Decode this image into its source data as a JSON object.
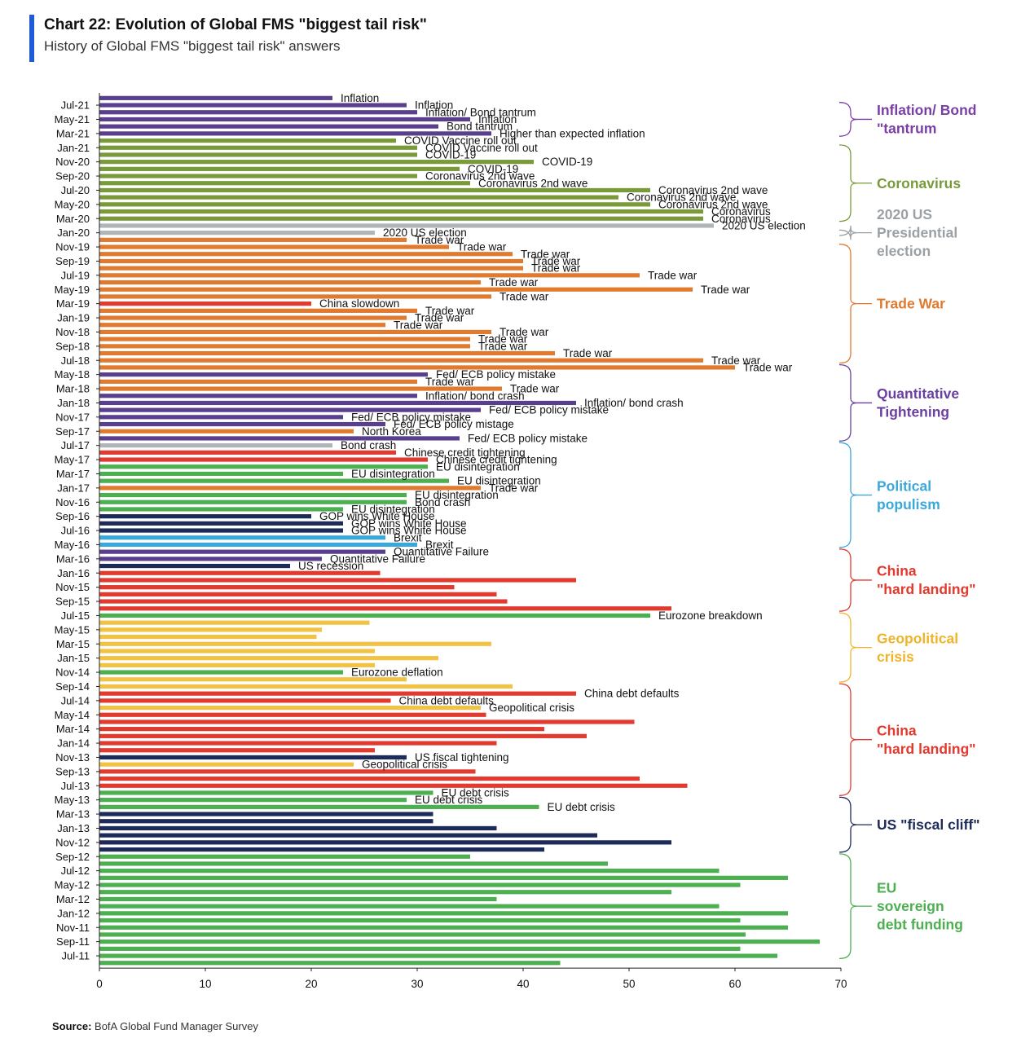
{
  "title": "Chart 22: Evolution of Global FMS \"biggest tail risk\"",
  "subtitle": "History of Global FMS \"biggest tail risk\" answers",
  "source_label": "Source:",
  "source_text": "BofA Global Fund Manager Survey",
  "colors": {
    "inflation": "#5b3f8f",
    "covid": "#7a9a3a",
    "election": "#b0b5b8",
    "tradewar": "#e07a2e",
    "qt": "#5b3f8f",
    "populism": "#3aa8d8",
    "china": "#e23a2e",
    "geo": "#f2c244",
    "fiscal": "#1c2b59",
    "eu": "#4caf50"
  },
  "groups": [
    {
      "lines": [
        "Inflation/ Bond",
        "\"tantrum"
      ],
      "color": "#7a3fa6",
      "from": "Jul-21",
      "to": "Mar-21"
    },
    {
      "lines": [
        "Coronavirus"
      ],
      "color": "#7a9a3a",
      "from": "Jan-21",
      "to": "Mar-20"
    },
    {
      "lines": [
        "2020 US",
        "Presidential",
        "election"
      ],
      "color": "#9aa0a4",
      "from": "Jan-20",
      "to": "Jan-20"
    },
    {
      "lines": [
        "Trade War"
      ],
      "color": "#e07a2e",
      "from": "Nov-19",
      "to": "Jul-18"
    },
    {
      "lines": [
        "Quantitative",
        "Tightening"
      ],
      "color": "#6b3fa0",
      "from": "Jun-18",
      "to": "Aug-17"
    },
    {
      "lines": [
        "Political",
        "populism"
      ],
      "color": "#3aa8d8",
      "from": "Jul-17",
      "to": "May-16"
    },
    {
      "lines": [
        "China",
        "\"hard landing\""
      ],
      "color": "#e23a2e",
      "from": "Apr-16",
      "to": "Aug-15"
    },
    {
      "lines": [
        "Geopolitical",
        "crisis"
      ],
      "color": "#f0b429",
      "from": "Jul-15",
      "to": "Oct-14"
    },
    {
      "lines": [
        "China",
        "\"hard landing\""
      ],
      "color": "#e23a2e",
      "from": "Sep-14",
      "to": "Jun-13"
    },
    {
      "lines": [
        "US \"fiscal cliff\""
      ],
      "color": "#1c2b59",
      "from": "May-13",
      "to": "Oct-12"
    },
    {
      "lines": [
        "EU",
        "sovereign",
        "debt funding"
      ],
      "color": "#4caf50",
      "from": "Sep-12",
      "to": "Jul-11"
    }
  ],
  "chart_data": {
    "type": "bar",
    "orientation": "horizontal",
    "xlim": [
      0,
      70
    ],
    "xticks": [
      0,
      10,
      20,
      30,
      40,
      50,
      60,
      70
    ],
    "grid": false,
    "ytick_labels": [
      "Jul-21",
      "May-21",
      "Mar-21",
      "Jan-21",
      "Nov-20",
      "Sep-20",
      "Jul-20",
      "May-20",
      "Mar-20",
      "Jan-20",
      "Nov-19",
      "Sep-19",
      "Jul-19",
      "May-19",
      "Mar-19",
      "Jan-19",
      "Nov-18",
      "Sep-18",
      "Jul-18",
      "May-18",
      "Mar-18",
      "Jan-18",
      "Nov-17",
      "Sep-17",
      "Jul-17",
      "May-17",
      "Mar-17",
      "Jan-17",
      "Nov-16",
      "Sep-16",
      "Jul-16",
      "May-16",
      "Mar-16",
      "Jan-16",
      "Nov-15",
      "Sep-15",
      "Jul-15",
      "May-15",
      "Mar-15",
      "Jan-15",
      "Nov-14",
      "Sep-14",
      "Jul-14",
      "May-14",
      "Mar-14",
      "Jan-14",
      "Nov-13",
      "Sep-13",
      "Jul-13",
      "May-13",
      "Mar-13",
      "Jan-13",
      "Nov-12",
      "Sep-12",
      "Jul-12",
      "May-12",
      "Mar-12",
      "Jan-12",
      "Nov-11",
      "Sep-11",
      "Jul-11"
    ],
    "bars": [
      {
        "m": "Aug-21",
        "v": 22,
        "c": "inflation",
        "l": "Inflation"
      },
      {
        "m": "Jul-21",
        "v": 29,
        "c": "inflation",
        "l": "Inflation"
      },
      {
        "m": "Jun-21",
        "v": 30,
        "c": "inflation",
        "l": "Inflation/ Bond tantrum"
      },
      {
        "m": "May-21",
        "v": 35,
        "c": "inflation",
        "l": "Inflation"
      },
      {
        "m": "Apr-21",
        "v": 32,
        "c": "inflation",
        "l": "Bond tantrum"
      },
      {
        "m": "Mar-21",
        "v": 37,
        "c": "inflation",
        "l": "Higher than expected inflation"
      },
      {
        "m": "Feb-21",
        "v": 28,
        "c": "covid",
        "l": "COVID Vaccine roll out"
      },
      {
        "m": "Jan-21",
        "v": 30,
        "c": "covid",
        "l": "COVID Vaccine roll out"
      },
      {
        "m": "Dec-20",
        "v": 30,
        "c": "covid",
        "l": "COVID-19"
      },
      {
        "m": "Nov-20",
        "v": 41,
        "c": "covid",
        "l": "COVID-19"
      },
      {
        "m": "Oct-20",
        "v": 34,
        "c": "covid",
        "l": "COVID-19"
      },
      {
        "m": "Sep-20",
        "v": 30,
        "c": "covid",
        "l": "Coronavirus 2nd wave"
      },
      {
        "m": "Aug-20",
        "v": 35,
        "c": "covid",
        "l": "Coronavirus 2nd wave"
      },
      {
        "m": "Jul-20",
        "v": 52,
        "c": "covid",
        "l": "Coronavirus 2nd wave"
      },
      {
        "m": "Jun-20",
        "v": 49,
        "c": "covid",
        "l": "Coronavirus 2nd wave"
      },
      {
        "m": "May-20",
        "v": 52,
        "c": "covid",
        "l": "Coronavirus 2nd wave"
      },
      {
        "m": "Apr-20",
        "v": 57,
        "c": "covid",
        "l": "Coronavirus"
      },
      {
        "m": "Mar-20",
        "v": 57,
        "c": "covid",
        "l": "Coronavirus"
      },
      {
        "m": "Feb-20",
        "v": 58,
        "c": "election",
        "l": "2020 US election"
      },
      {
        "m": "Jan-20",
        "v": 26,
        "c": "election",
        "l": "2020 US election"
      },
      {
        "m": "Dec-19",
        "v": 29,
        "c": "tradewar",
        "l": "Trade war"
      },
      {
        "m": "Nov-19",
        "v": 33,
        "c": "tradewar",
        "l": "Trade war"
      },
      {
        "m": "Oct-19",
        "v": 39,
        "c": "tradewar",
        "l": "Trade war"
      },
      {
        "m": "Sep-19",
        "v": 40,
        "c": "tradewar",
        "l": "Trade war"
      },
      {
        "m": "Aug-19",
        "v": 40,
        "c": "tradewar",
        "l": "Trade war"
      },
      {
        "m": "Jul-19",
        "v": 51,
        "c": "tradewar",
        "l": "Trade war"
      },
      {
        "m": "Jun-19",
        "v": 36,
        "c": "tradewar",
        "l": "Trade war"
      },
      {
        "m": "May-19",
        "v": 56,
        "c": "tradewar",
        "l": "Trade war"
      },
      {
        "m": "Apr-19",
        "v": 37,
        "c": "tradewar",
        "l": "Trade war"
      },
      {
        "m": "Mar-19",
        "v": 20,
        "c": "china",
        "l": "China slowdown"
      },
      {
        "m": "Feb-19",
        "v": 30,
        "c": "tradewar",
        "l": "Trade war"
      },
      {
        "m": "Jan-19",
        "v": 29,
        "c": "tradewar",
        "l": "Trade war"
      },
      {
        "m": "Dec-18",
        "v": 27,
        "c": "tradewar",
        "l": "Trade war"
      },
      {
        "m": "Nov-18",
        "v": 37,
        "c": "tradewar",
        "l": "Trade war"
      },
      {
        "m": "Oct-18",
        "v": 35,
        "c": "tradewar",
        "l": "Trade war"
      },
      {
        "m": "Sep-18",
        "v": 35,
        "c": "tradewar",
        "l": "Trade war"
      },
      {
        "m": "Aug-18",
        "v": 43,
        "c": "tradewar",
        "l": "Trade war"
      },
      {
        "m": "Jul-18",
        "v": 57,
        "c": "tradewar",
        "l": "Trade war"
      },
      {
        "m": "Jun-18",
        "v": 60,
        "c": "tradewar",
        "l": "Trade war"
      },
      {
        "m": "May-18",
        "v": 31,
        "c": "qt",
        "l": "Fed/ ECB policy mistake"
      },
      {
        "m": "Apr-18",
        "v": 30,
        "c": "tradewar",
        "l": "Trade war"
      },
      {
        "m": "Mar-18",
        "v": 38,
        "c": "tradewar",
        "l": "Trade war"
      },
      {
        "m": "Feb-18",
        "v": 30,
        "c": "qt",
        "l": "Inflation/ bond crash"
      },
      {
        "m": "Jan-18",
        "v": 45,
        "c": "qt",
        "l": "Inflation/ bond crash"
      },
      {
        "m": "Dec-17",
        "v": 36,
        "c": "qt",
        "l": "Fed/ ECB policy mistake"
      },
      {
        "m": "Nov-17",
        "v": 23,
        "c": "qt",
        "l": "Fed/ ECB policy mistake"
      },
      {
        "m": "Oct-17",
        "v": 27,
        "c": "qt",
        "l": "Fed/ ECB policy mistage"
      },
      {
        "m": "Sep-17",
        "v": 24,
        "c": "tradewar",
        "l": "North Korea"
      },
      {
        "m": "Aug-17",
        "v": 34,
        "c": "qt",
        "l": "Fed/ ECB policy mistake"
      },
      {
        "m": "Jul-17",
        "v": 22,
        "c": "election",
        "l": "Bond crash"
      },
      {
        "m": "Jun-17",
        "v": 28,
        "c": "china",
        "l": "Chinese credit tightening"
      },
      {
        "m": "May-17",
        "v": 31,
        "c": "china",
        "l": "Chinese credit tightening"
      },
      {
        "m": "Apr-17",
        "v": 31,
        "c": "eu",
        "l": "EU disintegration"
      },
      {
        "m": "Mar-17",
        "v": 23,
        "c": "eu",
        "l": "EU disintegration"
      },
      {
        "m": "Feb-17",
        "v": 33,
        "c": "eu",
        "l": "EU disintegration"
      },
      {
        "m": "Jan-17",
        "v": 36,
        "c": "tradewar",
        "l": "Trade war"
      },
      {
        "m": "Dec-16",
        "v": 29,
        "c": "eu",
        "l": "EU disintegration"
      },
      {
        "m": "Nov-16",
        "v": 29,
        "c": "eu",
        "l": "Bond crash"
      },
      {
        "m": "Oct-16",
        "v": 23,
        "c": "eu",
        "l": "EU disintegration"
      },
      {
        "m": "Sep-16",
        "v": 20,
        "c": "fiscal",
        "l": "GOP wins White House"
      },
      {
        "m": "Aug-16",
        "v": 23,
        "c": "fiscal",
        "l": "GOP wins White House"
      },
      {
        "m": "Jul-16",
        "v": 23,
        "c": "fiscal",
        "l": "GOP wins White House"
      },
      {
        "m": "Jun-16",
        "v": 27,
        "c": "populism",
        "l": "Brexit"
      },
      {
        "m": "May-16",
        "v": 30,
        "c": "populism",
        "l": "Brexit"
      },
      {
        "m": "Apr-16",
        "v": 27,
        "c": "qt",
        "l": "Quantitative Failure"
      },
      {
        "m": "Mar-16",
        "v": 21,
        "c": "qt",
        "l": "Quantitative Failure"
      },
      {
        "m": "Feb-16",
        "v": 18,
        "c": "fiscal",
        "l": "US recession"
      },
      {
        "m": "Jan-16",
        "v": 26.5,
        "c": "china",
        "l": ""
      },
      {
        "m": "Dec-15",
        "v": 45,
        "c": "china",
        "l": ""
      },
      {
        "m": "Nov-15",
        "v": 33.5,
        "c": "china",
        "l": ""
      },
      {
        "m": "Oct-15",
        "v": 37.5,
        "c": "china",
        "l": ""
      },
      {
        "m": "Sep-15",
        "v": 38.5,
        "c": "china",
        "l": ""
      },
      {
        "m": "Aug-15",
        "v": 54,
        "c": "china",
        "l": ""
      },
      {
        "m": "Jul-15",
        "v": 52,
        "c": "eu",
        "l": "Eurozone breakdown"
      },
      {
        "m": "Jun-15",
        "v": 25.5,
        "c": "geo",
        "l": ""
      },
      {
        "m": "May-15",
        "v": 21,
        "c": "geo",
        "l": ""
      },
      {
        "m": "Apr-15",
        "v": 20.5,
        "c": "geo",
        "l": ""
      },
      {
        "m": "Mar-15",
        "v": 37,
        "c": "geo",
        "l": ""
      },
      {
        "m": "Feb-15",
        "v": 26,
        "c": "geo",
        "l": ""
      },
      {
        "m": "Jan-15",
        "v": 32,
        "c": "geo",
        "l": ""
      },
      {
        "m": "Dec-14",
        "v": 26,
        "c": "geo",
        "l": ""
      },
      {
        "m": "Nov-14",
        "v": 23,
        "c": "eu",
        "l": "Eurozone deflation"
      },
      {
        "m": "Oct-14",
        "v": 29,
        "c": "geo",
        "l": ""
      },
      {
        "m": "Sep-14",
        "v": 39,
        "c": "geo",
        "l": ""
      },
      {
        "m": "Aug-14",
        "v": 45,
        "c": "china",
        "l": "China debt defaults"
      },
      {
        "m": "Jul-14",
        "v": 27.5,
        "c": "china",
        "l": "China debt defaults"
      },
      {
        "m": "Jun-14",
        "v": 36,
        "c": "geo",
        "l": "Geopolitical crisis"
      },
      {
        "m": "May-14",
        "v": 36.5,
        "c": "china",
        "l": ""
      },
      {
        "m": "Apr-14",
        "v": 50.5,
        "c": "china",
        "l": ""
      },
      {
        "m": "Mar-14",
        "v": 42,
        "c": "china",
        "l": ""
      },
      {
        "m": "Feb-14",
        "v": 46,
        "c": "china",
        "l": ""
      },
      {
        "m": "Jan-14",
        "v": 37.5,
        "c": "china",
        "l": ""
      },
      {
        "m": "Dec-13",
        "v": 26,
        "c": "china",
        "l": ""
      },
      {
        "m": "Nov-13",
        "v": 29,
        "c": "fiscal",
        "l": "US fiscal tightening"
      },
      {
        "m": "Oct-13",
        "v": 24,
        "c": "geo",
        "l": "Geopolitical crisis"
      },
      {
        "m": "Sep-13",
        "v": 35.5,
        "c": "china",
        "l": ""
      },
      {
        "m": "Aug-13",
        "v": 51,
        "c": "china",
        "l": ""
      },
      {
        "m": "Jul-13",
        "v": 55.5,
        "c": "china",
        "l": ""
      },
      {
        "m": "Jun-13",
        "v": 31.5,
        "c": "eu",
        "l": "EU debt crisis"
      },
      {
        "m": "May-13",
        "v": 29,
        "c": "eu",
        "l": "EU debt crisis"
      },
      {
        "m": "Apr-13",
        "v": 41.5,
        "c": "eu",
        "l": "EU debt crisis"
      },
      {
        "m": "Mar-13",
        "v": 31.5,
        "c": "fiscal",
        "l": ""
      },
      {
        "m": "Feb-13",
        "v": 31.5,
        "c": "fiscal",
        "l": ""
      },
      {
        "m": "Jan-13",
        "v": 37.5,
        "c": "fiscal",
        "l": ""
      },
      {
        "m": "Dec-12",
        "v": 47,
        "c": "fiscal",
        "l": ""
      },
      {
        "m": "Nov-12",
        "v": 54,
        "c": "fiscal",
        "l": ""
      },
      {
        "m": "Oct-12",
        "v": 42,
        "c": "fiscal",
        "l": ""
      },
      {
        "m": "Sep-12",
        "v": 35,
        "c": "eu",
        "l": ""
      },
      {
        "m": "Aug-12",
        "v": 48,
        "c": "eu",
        "l": ""
      },
      {
        "m": "Jul-12",
        "v": 58.5,
        "c": "eu",
        "l": ""
      },
      {
        "m": "Jun-12",
        "v": 65,
        "c": "eu",
        "l": ""
      },
      {
        "m": "May-12",
        "v": 60.5,
        "c": "eu",
        "l": ""
      },
      {
        "m": "Apr-12",
        "v": 54,
        "c": "eu",
        "l": ""
      },
      {
        "m": "Mar-12",
        "v": 37.5,
        "c": "eu",
        "l": ""
      },
      {
        "m": "Feb-12",
        "v": 58.5,
        "c": "eu",
        "l": ""
      },
      {
        "m": "Jan-12",
        "v": 65,
        "c": "eu",
        "l": ""
      },
      {
        "m": "Dec-11",
        "v": 60.5,
        "c": "eu",
        "l": ""
      },
      {
        "m": "Nov-11",
        "v": 65,
        "c": "eu",
        "l": ""
      },
      {
        "m": "Oct-11",
        "v": 61,
        "c": "eu",
        "l": ""
      },
      {
        "m": "Sep-11",
        "v": 68,
        "c": "eu",
        "l": ""
      },
      {
        "m": "Aug-11",
        "v": 60.5,
        "c": "eu",
        "l": ""
      },
      {
        "m": "Jul-11",
        "v": 64,
        "c": "eu",
        "l": ""
      },
      {
        "m": "Jun-11",
        "v": 43.5,
        "c": "eu",
        "l": ""
      }
    ]
  }
}
